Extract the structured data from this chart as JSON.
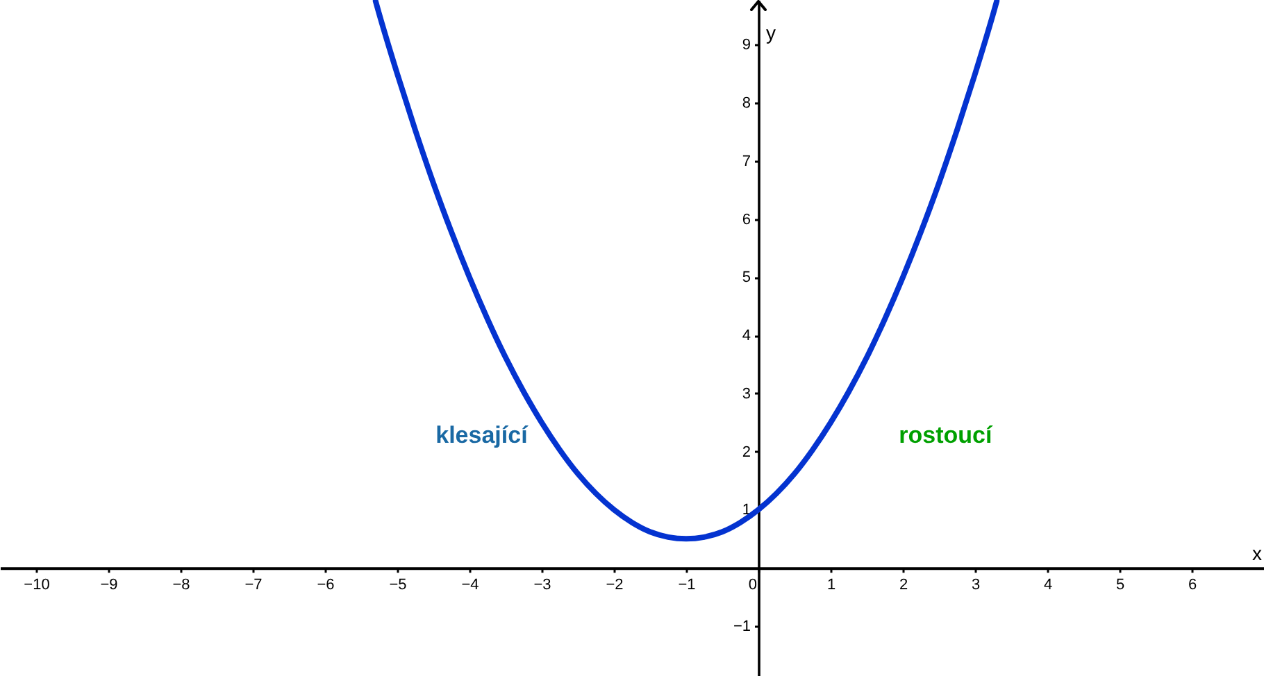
{
  "chart_data": {
    "type": "line",
    "xlabel": "x",
    "ylabel": "y",
    "color": "#0433d0",
    "line_style": "solid",
    "x": [
      -5.3,
      -5.25,
      -5,
      -4.75,
      -4.5,
      -4.25,
      -4,
      -3.75,
      -3.5,
      -3.25,
      -3,
      -2.75,
      -2.5,
      -2.25,
      -2,
      -1.75,
      -1.5,
      -1.25,
      -1,
      -0.75,
      -0.5,
      -0.25,
      0,
      0.25,
      0.5,
      0.75,
      1,
      1.25,
      1.5,
      1.75,
      2,
      2.25,
      2.5,
      2.75,
      3,
      3.25,
      3.3
    ],
    "values": [
      9.75,
      9.53,
      8.5,
      7.53,
      6.62,
      5.78,
      5,
      4.28,
      3.62,
      3.03,
      2.5,
      2.03,
      1.62,
      1.28,
      1,
      0.78,
      0.62,
      0.53,
      0.5,
      0.53,
      0.62,
      0.78,
      1,
      1.28,
      1.62,
      2.03,
      2.5,
      3.03,
      3.62,
      4.28,
      5,
      5.78,
      6.62,
      7.53,
      8.5,
      9.53,
      9.75
    ],
    "xlim": [
      -10.5,
      7.0
    ],
    "ylim": [
      -1.86,
      9.77
    ],
    "xticks": [
      -10,
      -9,
      -8,
      -7,
      -6,
      -5,
      -4,
      -3,
      -2,
      -1,
      0,
      1,
      2,
      3,
      4,
      5,
      6
    ],
    "yticks": [
      -1,
      1,
      2,
      3,
      4,
      5,
      6,
      7,
      8,
      9
    ],
    "annotations": [
      "klesající",
      "rostoucí"
    ]
  }
}
